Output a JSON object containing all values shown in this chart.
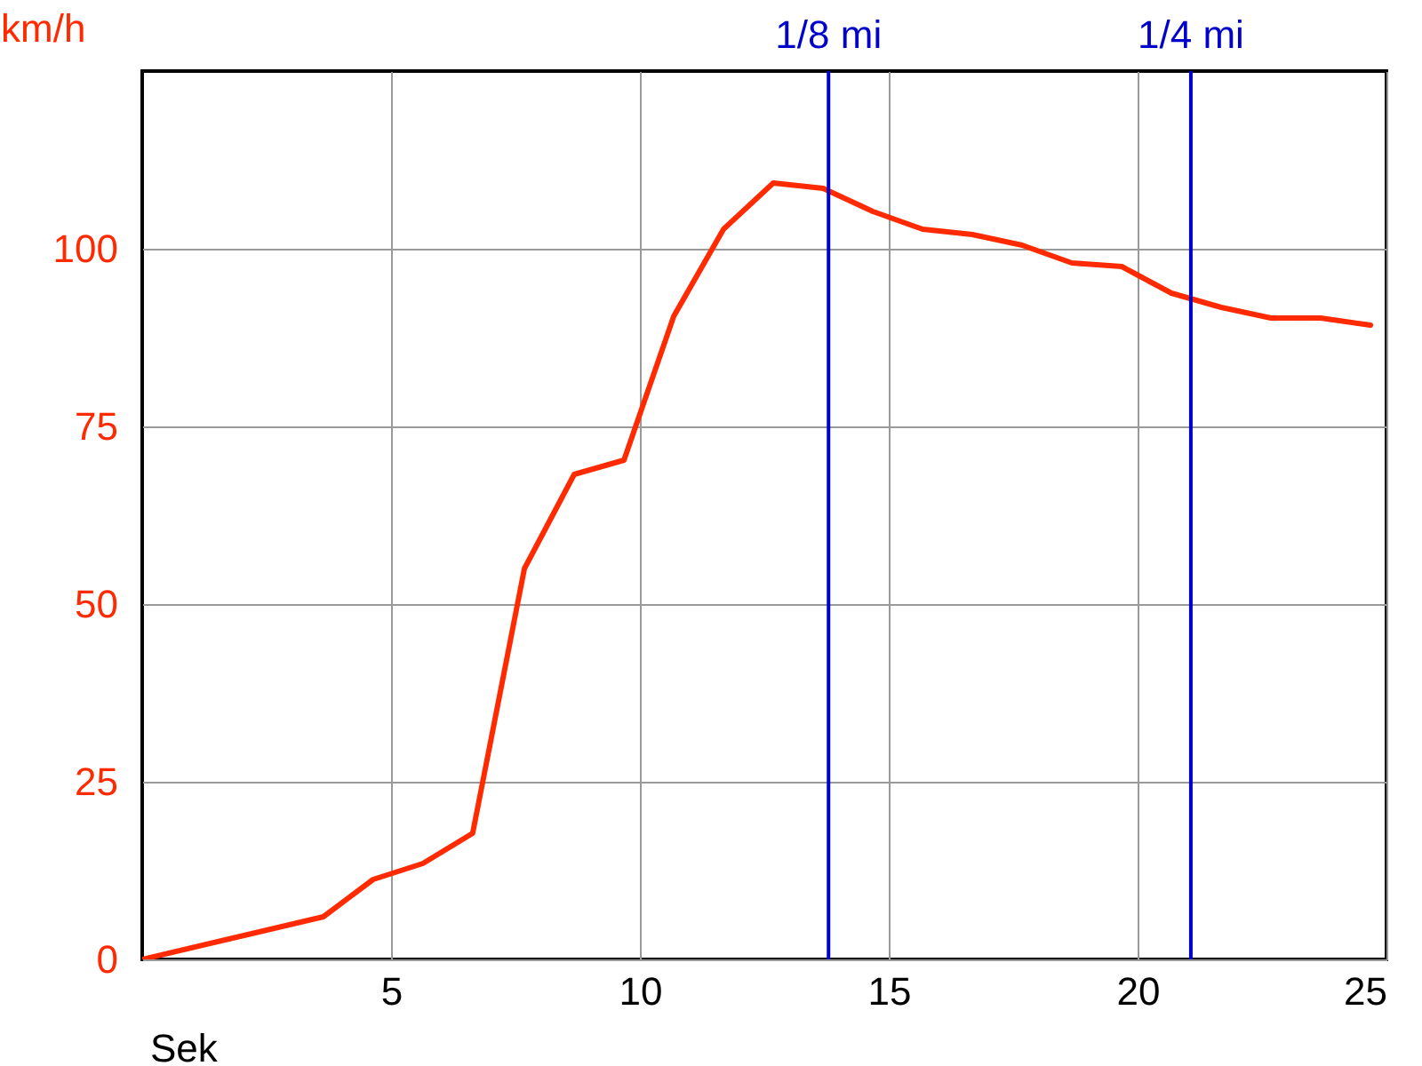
{
  "chart_data": {
    "type": "line",
    "xlabel": "Sek",
    "ylabel": "km/h",
    "xlim": [
      0,
      25
    ],
    "ylim": [
      0,
      125
    ],
    "xticks": [
      5,
      10,
      15,
      20,
      25
    ],
    "yticks": [
      0,
      25,
      50,
      75,
      100
    ],
    "grid": true,
    "x": [
      0,
      3.64,
      4.64,
      5.64,
      6.64,
      7.68,
      8.68,
      9.68,
      10.68,
      11.68,
      12.68,
      13.68,
      14.68,
      15.68,
      16.68,
      17.68,
      18.68,
      19.68,
      20.68,
      21.68,
      22.68,
      23.68,
      24.68
    ],
    "series": [
      {
        "color": "#ff2a00",
        "values": [
          0,
          6,
          11.25,
          13.5,
          17.75,
          55,
          68.25,
          70.25,
          90.5,
          102.75,
          109.25,
          108.5,
          105.25,
          102.75,
          102,
          100.5,
          98,
          97.5,
          93.75,
          91.75,
          90.25,
          90.25,
          89.25
        ]
      }
    ],
    "ref_lines": [
      {
        "axis": "x",
        "value": 13.79,
        "label": "1/8 mi",
        "color": "#0000cc"
      },
      {
        "axis": "x",
        "value": 21.07,
        "label": "1/4 mi",
        "color": "#0000cc"
      }
    ]
  }
}
